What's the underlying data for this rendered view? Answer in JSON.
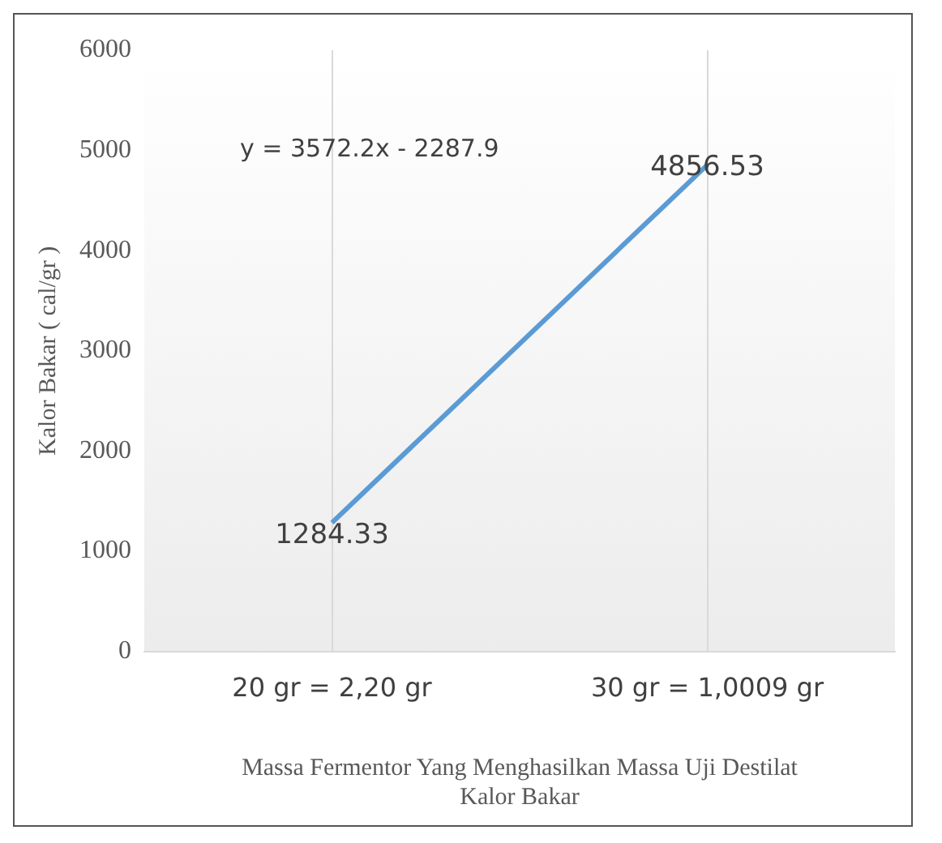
{
  "chart_data": {
    "type": "line",
    "categories": [
      "20 gr = 2,20 gr",
      "30 gr = 1,0009 gr"
    ],
    "series": [
      {
        "color": "#5b9bd5",
        "values": [
          1284.33,
          4856.53
        ]
      }
    ],
    "ylim": [
      0,
      6000
    ],
    "yticks": [
      0,
      1000,
      2000,
      3000,
      4000,
      5000,
      6000
    ],
    "ylabel": "Kalor Bakar ( cal/gr )",
    "xlabel": "Massa Fermentor Yang Menghasilkan Massa Uji Destilat Kalor Bakar",
    "annotations": [
      "y = 3572.2x - 2287.9"
    ],
    "data_labels": true,
    "grid": "x",
    "legend": false,
    "marker": "none",
    "line_style": "solid"
  }
}
